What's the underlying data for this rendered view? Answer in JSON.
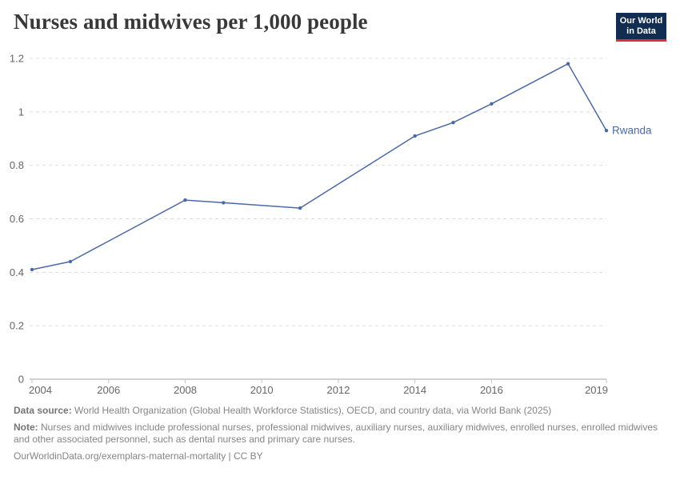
{
  "header": {
    "title": "Nurses and midwives per 1,000 people",
    "logo": {
      "line1": "Our World",
      "line2": "in Data",
      "bg_color": "#112d51",
      "accent_color": "#d63232"
    }
  },
  "chart_data": {
    "type": "line",
    "title": "Nurses and midwives per 1,000 people",
    "xlabel": "",
    "ylabel": "",
    "xlim": [
      2004,
      2019
    ],
    "ylim": [
      0,
      1.2
    ],
    "grid": "horizontal-dashed",
    "legend_position": "end-of-line-label",
    "x_ticks": [
      2004,
      2006,
      2008,
      2010,
      2012,
      2014,
      2016,
      2019
    ],
    "y_ticks": [
      0,
      0.2,
      0.4,
      0.6,
      0.8,
      1,
      1.2
    ],
    "y_tick_labels": [
      "0",
      "0.2",
      "0.4",
      "0.6",
      "0.8",
      "1",
      "1.2"
    ],
    "series": [
      {
        "name": "Rwanda",
        "end_label": "Rwanda",
        "color": "#4a69a8",
        "x": [
          2004,
          2005,
          2008,
          2009,
          2011,
          2014,
          2015,
          2016,
          2018,
          2019
        ],
        "values": [
          0.41,
          0.44,
          0.67,
          0.66,
          0.64,
          0.91,
          0.96,
          1.03,
          1.18,
          0.93
        ]
      }
    ]
  },
  "footer": {
    "data_source_label": "Data source:",
    "data_source_text": "World Health Organization (Global Health Workforce Statistics), OECD, and country data, via World Bank (2025)",
    "note_label": "Note:",
    "note_text": "Nurses and midwives include professional nurses, professional midwives, auxiliary nurses, auxiliary midwives, enrolled nurses, enrolled midwives and other associated personnel, such as dental nurses and primary care nurses.",
    "origin_text": "OurWorldinData.org/exemplars-maternal-mortality | CC BY"
  }
}
